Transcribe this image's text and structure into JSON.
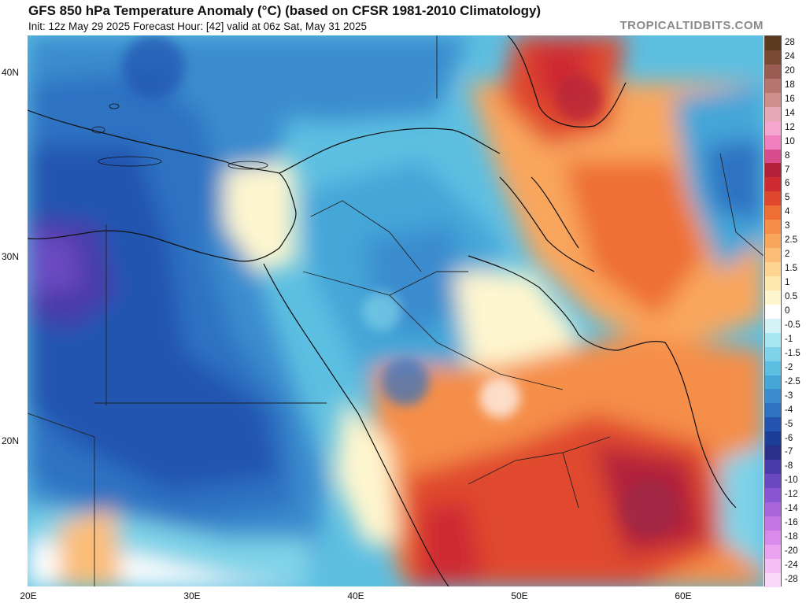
{
  "header": {
    "title": "GFS 850 hPa Temperature Anomaly (°C) (based on CFSR 1981-2010 Climatology)",
    "subtitle": "Init: 12z May 29 2025   Forecast Hour: [42]   valid at 06z Sat, May 31 2025",
    "brand": "TROPICALTIDBITS.COM"
  },
  "map": {
    "lat_labels": [
      "40N",
      "30N",
      "20N"
    ],
    "lon_labels": [
      "20E",
      "30E",
      "40E",
      "50E",
      "60E"
    ]
  },
  "colorbar": {
    "labels": [
      "28",
      "24",
      "20",
      "18",
      "16",
      "14",
      "12",
      "10",
      "8",
      "7",
      "6",
      "5",
      "4",
      "3",
      "2.5",
      "2",
      "1.5",
      "1",
      "0.5",
      "0",
      "-0.5",
      "-1",
      "-1.5",
      "-2",
      "-2.5",
      "-3",
      "-4",
      "-5",
      "-6",
      "-7",
      "-8",
      "-10",
      "-12",
      "-14",
      "-16",
      "-18",
      "-20",
      "-24",
      "-28"
    ],
    "colors": [
      "#5c3a1e",
      "#7b4a34",
      "#9a5c52",
      "#b8746e",
      "#cf8f8a",
      "#e5a9b5",
      "#f4a6cf",
      "#f07fc0",
      "#d94c8c",
      "#b2203a",
      "#ce2a32",
      "#e0482e",
      "#ee6e36",
      "#f58e49",
      "#f9a65d",
      "#fbbd78",
      "#fdd591",
      "#fde9ab",
      "#fef6cf",
      "#ffffff",
      "#d3f3f6",
      "#a6e6ee",
      "#7fd3e8",
      "#5dbfe1",
      "#45a6d8",
      "#3a8cce",
      "#2f72c2",
      "#2454b0",
      "#1c3d98",
      "#2a2f8a",
      "#4a3ba8",
      "#6a48c0",
      "#8a55d0",
      "#a865db",
      "#c477e4",
      "#d98bec",
      "#e9a3f1",
      "#f3bff5",
      "#fad8f9"
    ]
  }
}
